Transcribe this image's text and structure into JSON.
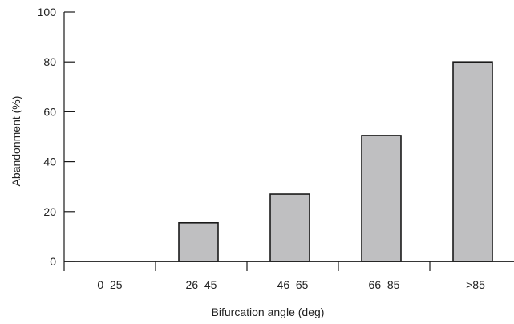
{
  "chart_data": {
    "type": "bar",
    "categories": [
      "0–25",
      "26–45",
      "46–65",
      "66–85",
      ">85"
    ],
    "values": [
      0,
      15.5,
      27,
      50.5,
      80
    ],
    "xlabel": "Bifurcation angle (deg)",
    "ylabel": "Abandonment (%)",
    "ylim": [
      0,
      100
    ],
    "yticks": [
      "0",
      "20",
      "40",
      "60",
      "80",
      "100"
    ],
    "grid": false,
    "legend": "none",
    "bar_color": "#bfbfc1",
    "edge_color": "#1a1a1a"
  }
}
